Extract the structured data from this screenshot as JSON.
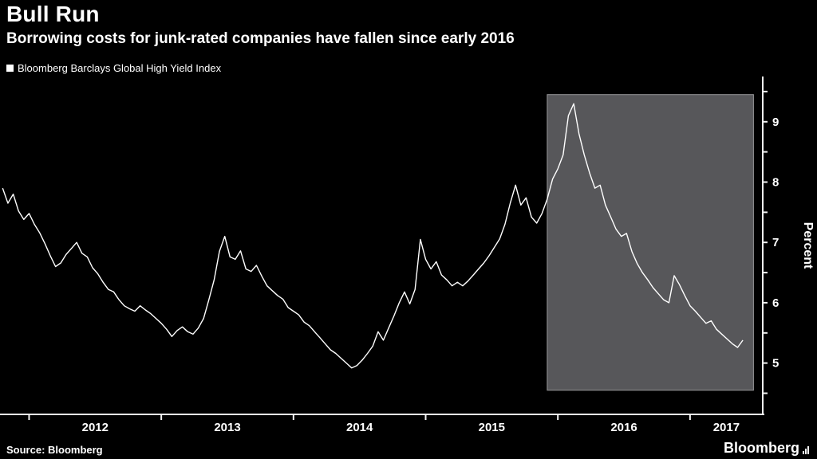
{
  "header": {
    "title": "Bull Run",
    "subtitle": "Borrowing costs for junk-rated companies have fallen since early 2016"
  },
  "legend": {
    "label": "Bloomberg Barclays Global High Yield Index",
    "swatch_color": "#ffffff"
  },
  "footer": {
    "source": "Source: Bloomberg",
    "brand": "Bloomberg"
  },
  "colors": {
    "background": "#000000",
    "text": "#ffffff",
    "line": "#ffffff",
    "axis": "#f2f2f2",
    "highlight_fill": "#57575a",
    "highlight_border": "#98989a"
  },
  "chart_data": {
    "type": "line",
    "title": "Bull Run",
    "series_name": "Bloomberg Barclays Global High Yield Index",
    "ylabel": "Percent",
    "x_unit": "year (decimal)",
    "x_range": [
      2011.78,
      2017.55
    ],
    "y_range": [
      4.15,
      9.75
    ],
    "y_ticks": [
      5,
      6,
      7,
      8,
      9
    ],
    "y_minor_step": 0.5,
    "x_ticks": [
      2012,
      2013,
      2014,
      2015,
      2016,
      2017
    ],
    "x_tick_labels": [
      "2012",
      "2013",
      "2014",
      "2015",
      "2016",
      "2017"
    ],
    "highlight_region": {
      "x0": 2015.92,
      "x1": 2017.48,
      "y0": 4.55,
      "y1": 9.45
    },
    "x_start": 2011.8,
    "x_step": 0.04,
    "values": [
      7.9,
      7.65,
      7.8,
      7.52,
      7.38,
      7.48,
      7.3,
      7.16,
      6.98,
      6.78,
      6.6,
      6.66,
      6.8,
      6.9,
      7.0,
      6.82,
      6.76,
      6.58,
      6.48,
      6.34,
      6.22,
      6.18,
      6.05,
      5.95,
      5.9,
      5.86,
      5.95,
      5.88,
      5.82,
      5.74,
      5.66,
      5.56,
      5.44,
      5.54,
      5.6,
      5.52,
      5.48,
      5.58,
      5.74,
      6.05,
      6.38,
      6.85,
      7.1,
      6.76,
      6.72,
      6.86,
      6.56,
      6.52,
      6.62,
      6.44,
      6.28,
      6.2,
      6.12,
      6.06,
      5.92,
      5.86,
      5.8,
      5.68,
      5.62,
      5.52,
      5.42,
      5.32,
      5.22,
      5.16,
      5.08,
      5.0,
      4.92,
      4.96,
      5.05,
      5.16,
      5.28,
      5.52,
      5.38,
      5.58,
      5.78,
      6.0,
      6.18,
      5.98,
      6.22,
      7.05,
      6.72,
      6.56,
      6.68,
      6.46,
      6.38,
      6.28,
      6.34,
      6.28,
      6.36,
      6.46,
      6.56,
      6.66,
      6.78,
      6.92,
      7.06,
      7.3,
      7.65,
      7.95,
      7.62,
      7.74,
      7.42,
      7.32,
      7.48,
      7.72,
      8.05,
      8.22,
      8.45,
      9.1,
      9.3,
      8.8,
      8.45,
      8.15,
      7.9,
      7.95,
      7.62,
      7.42,
      7.22,
      7.1,
      7.15,
      6.85,
      6.65,
      6.5,
      6.38,
      6.25,
      6.15,
      6.05,
      6.0,
      6.45,
      6.3,
      6.12,
      5.95,
      5.86,
      5.76,
      5.66,
      5.7,
      5.56,
      5.48,
      5.4,
      5.32,
      5.26,
      5.38
    ]
  }
}
